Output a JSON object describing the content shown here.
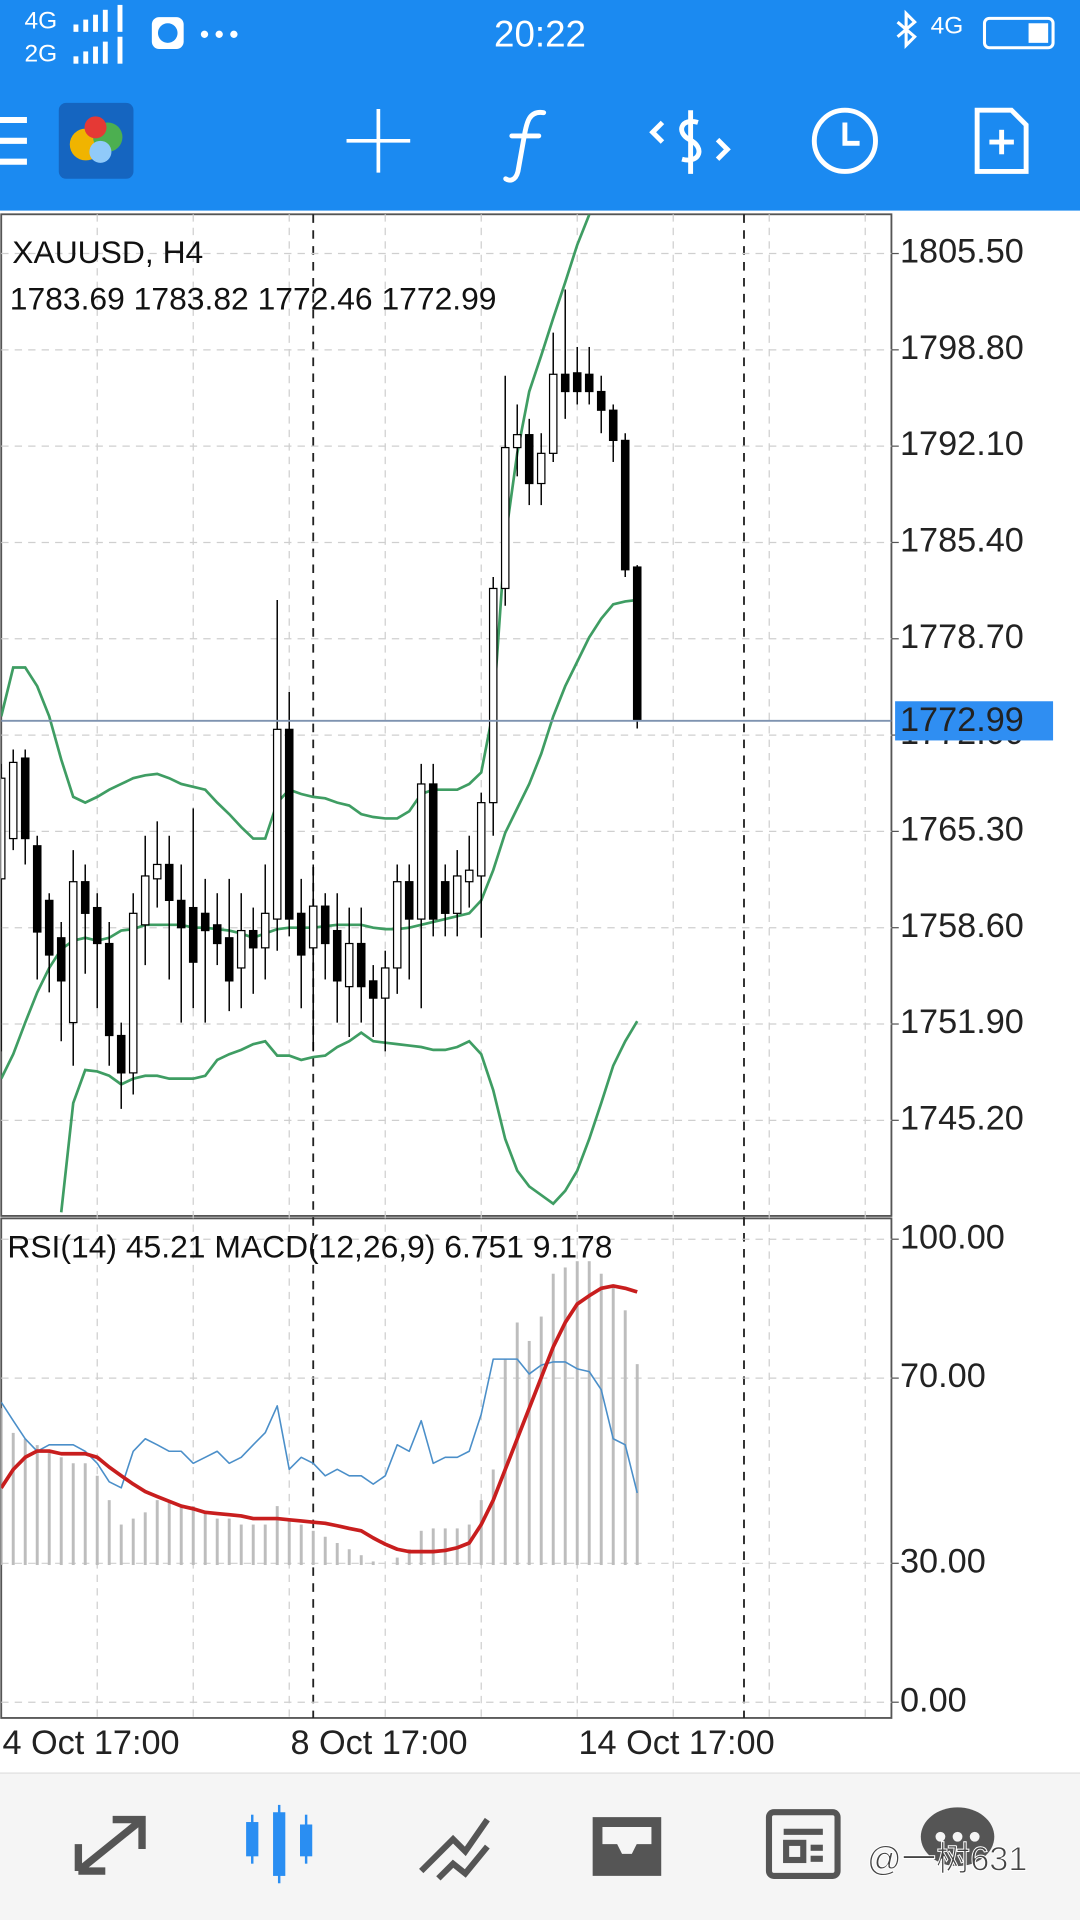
{
  "status_bar": {
    "network_top": "4G",
    "network_bottom": "2G",
    "time": "20:22",
    "network_right": "4G"
  },
  "chart_data": [
    {
      "type": "candlestick",
      "title": "XAUUSD, H4",
      "subtitle": "1783.69 1783.82 1772.46 1772.99",
      "categories": [
        "4 Oct 17:00",
        null,
        null,
        null,
        null,
        null,
        null,
        null,
        null,
        null,
        null,
        null,
        null,
        null,
        null,
        null,
        null,
        null,
        null,
        null,
        null,
        null,
        null,
        null,
        "8 Oct 17:00",
        null,
        null,
        null,
        null,
        null,
        null,
        null,
        null,
        null,
        null,
        null,
        null,
        null,
        null,
        null,
        null,
        null,
        null,
        null,
        null,
        null,
        null,
        null,
        "14 Oct 17:00",
        null,
        null,
        null,
        null,
        null
      ],
      "open": [
        1762,
        1764.8,
        1770.4,
        1764.3,
        1760.5,
        1757.9,
        1752,
        1761.8,
        1760,
        1757.5,
        1751.1,
        1748.5,
        1758.8,
        1762,
        1763,
        1760.5,
        1760,
        1759.6,
        1758.8,
        1757.9,
        1755.8,
        1758.4,
        1757.2,
        1759.2,
        1772.4,
        1759.6,
        1757.2,
        1760.1,
        1758.4,
        1754.5,
        1757.5,
        1754.9,
        1753.7,
        1755.8,
        1761.8,
        1759.2,
        1768.6,
        1761.8,
        1759.6,
        1761.8,
        1762.2,
        1767.3,
        1782.2,
        1792,
        1792.9,
        1789.5,
        1791.6,
        1797.1,
        1797.2,
        1797.1,
        1795.9,
        1794.6,
        1792.5,
        1783.69
      ],
      "high": [
        1770,
        1771,
        1771,
        1765,
        1761,
        1759,
        1764,
        1763,
        1761,
        1759,
        1752,
        1761,
        1765,
        1766,
        1765,
        1763,
        1766.9,
        1762,
        1761,
        1762,
        1761,
        1760,
        1763,
        1781.4,
        1775,
        1762,
        1763,
        1761,
        1761,
        1760,
        1760,
        1756,
        1757,
        1763,
        1763,
        1770,
        1770,
        1763,
        1764,
        1765,
        1768,
        1783,
        1797,
        1795,
        1794,
        1793,
        1800,
        1803,
        1799,
        1799,
        1797,
        1795,
        1793,
        1783.82
      ],
      "low": [
        1750,
        1764,
        1763,
        1755,
        1754.1,
        1750.7,
        1749,
        1755.4,
        1753,
        1749,
        1746,
        1747,
        1756,
        1760,
        1755,
        1752,
        1753,
        1752,
        1756,
        1752.8,
        1753,
        1754,
        1755,
        1757,
        1758,
        1753,
        1750,
        1755,
        1752,
        1751,
        1752,
        1751,
        1750,
        1754,
        1755,
        1753,
        1758,
        1758,
        1758,
        1760,
        1757.9,
        1765,
        1781,
        1790,
        1788,
        1788,
        1791,
        1794,
        1795,
        1795,
        1793,
        1791,
        1783,
        1772.46
      ],
      "close": [
        1769,
        1770.1,
        1764.8,
        1758.3,
        1756.7,
        1754.9,
        1761.8,
        1759.6,
        1757.5,
        1751.1,
        1748.5,
        1759.6,
        1762.2,
        1763,
        1760.5,
        1758.6,
        1756.2,
        1758.4,
        1757.5,
        1754.9,
        1758.4,
        1757.2,
        1759.6,
        1772.4,
        1759.2,
        1756.7,
        1760.1,
        1757.5,
        1754.9,
        1757.5,
        1754.5,
        1753.7,
        1755.8,
        1761.8,
        1759.2,
        1768.6,
        1759.2,
        1759.6,
        1762.2,
        1762.6,
        1767.3,
        1782.2,
        1792,
        1792.9,
        1789.5,
        1791.6,
        1797.1,
        1795.9,
        1795.9,
        1795.9,
        1794.6,
        1792.5,
        1783.5,
        1772.99
      ],
      "up_color": "#ffffff",
      "down_color": "#000000",
      "series": [
        {
          "color": "#3f9d63",
          "values": [
            1773.3,
            1776.7,
            1776.7,
            1775.4,
            1773.3,
            1770.3,
            1767.7,
            1767.3,
            1767.7,
            1768.2,
            1768.6,
            1769.0,
            1769.2,
            1769.3,
            1769.0,
            1768.6,
            1768.4,
            1768.2,
            1767.3,
            1766.5,
            1765.6,
            1764.8,
            1764.8,
            1767.3,
            1768.2,
            1767.9,
            1767.7,
            1767.6,
            1767.3,
            1767.1,
            1766.5,
            1766.3,
            1766.2,
            1766.2,
            1766.7,
            1767.9,
            1768.2,
            1768.2,
            1768.2,
            1768.6,
            1769.4,
            1773.7,
            1785.6,
            1791.6,
            1795.9,
            1798.4,
            1801.0,
            1803.5,
            1806.1,
            1808.2,
            null,
            null,
            null,
            null
          ]
        },
        {
          "color": "#3f9d63",
          "values": [
            1748.1,
            1749.8,
            1752.0,
            1754.1,
            1755.8,
            1757.1,
            1757.7,
            1757.9,
            1757.7,
            1757.9,
            1758.4,
            1758.5,
            1758.8,
            1758.8,
            1758.8,
            1758.8,
            1758.6,
            1758.6,
            1758.5,
            1758.4,
            1758.2,
            1757.9,
            1758.2,
            1758.5,
            1758.6,
            1758.6,
            1758.6,
            1758.7,
            1758.8,
            1758.8,
            1758.8,
            1758.6,
            1758.5,
            1758.5,
            1758.6,
            1758.8,
            1759.0,
            1759.2,
            1759.4,
            1759.6,
            1760.5,
            1762.6,
            1765.2,
            1766.9,
            1768.6,
            1770.7,
            1773.3,
            1775.4,
            1777.1,
            1778.8,
            1780.1,
            1781.1,
            1781.3,
            1781.4
          ]
        },
        {
          "color": "#3f9d63",
          "values": [
            null,
            null,
            null,
            null,
            null,
            1738.8,
            1746.4,
            1748.7,
            1748.6,
            1748.3,
            1747.7,
            1748.1,
            1748.3,
            1748.3,
            1748.1,
            1748.1,
            1748.1,
            1748.3,
            1749.4,
            1749.8,
            1750.1,
            1750.5,
            1750.7,
            1749.7,
            1749.7,
            1749.4,
            1749.6,
            1749.7,
            1750.3,
            1750.7,
            1751.3,
            1750.7,
            1750.6,
            1750.5,
            1750.4,
            1750.3,
            1750.1,
            1750.1,
            1750.3,
            1750.7,
            1749.8,
            1747.3,
            1743.9,
            1741.7,
            1740.6,
            1740.0,
            1739.4,
            1740.3,
            1741.7,
            1743.9,
            1746.4,
            1749.0,
            1750.7,
            1752.1
          ]
        }
      ],
      "ylim": [
        1738.55,
        1808.23
      ],
      "yticks": [
        {
          "value": 1805.5,
          "label": "1805.50"
        },
        {
          "value": 1798.8,
          "label": "1798.80"
        },
        {
          "value": 1792.1,
          "label": "1792.10"
        },
        {
          "value": 1785.4,
          "label": "1785.40"
        },
        {
          "value": 1778.7,
          "label": "1778.70"
        },
        {
          "value": 1772,
          "label": "1772.00"
        },
        {
          "value": 1765.3,
          "label": "1765.30"
        },
        {
          "value": 1758.6,
          "label": "1758.60"
        },
        {
          "value": 1751.9,
          "label": "1751.90"
        },
        {
          "value": 1745.2,
          "label": "1745.20"
        }
      ],
      "last_price": 1772.99,
      "last_price_color": "#2f8ef2",
      "grid": true
    },
    {
      "type": "indicator",
      "title": "RSI(14) 45.21 MACD(12,26,9) 6.751 9.178",
      "ylim": [
        -3.4,
        104.5
      ],
      "yticks": [
        {
          "value": 0,
          "label": "0.00"
        },
        {
          "value": 30,
          "label": "30.00"
        },
        {
          "value": 70,
          "label": "70.00"
        },
        {
          "value": 100,
          "label": "100.00"
        }
      ],
      "y2lim": [
        -5.14,
        11.65
      ],
      "grid": true,
      "series": [
        {
          "type": "bar",
          "axis": "y2",
          "color": "#bdbdbd",
          "values": [
            5.27,
            4.44,
            4.24,
            4.03,
            3.83,
            3.62,
            3.42,
            3.42,
            3.0,
            2.18,
            1.36,
            1.56,
            1.77,
            2.18,
            2.18,
            1.98,
            1.98,
            1.77,
            1.56,
            1.56,
            1.36,
            1.36,
            1.36,
            1.98,
            1.56,
            1.36,
            1.15,
            0.95,
            0.74,
            0.53,
            0.33,
            0.12,
            0,
            0.25,
            0.53,
            1.15,
            1.23,
            1.23,
            1.23,
            1.36,
            2.18,
            3.21,
            6.91,
            8.15,
            7.53,
            8.35,
            9.79,
            10.0,
            10.21,
            10.21,
            9.79,
            9.38,
            8.56,
            6.751
          ]
        },
        {
          "type": "line",
          "color": "#4b8fc9",
          "width": 1.3,
          "values": [
            64.8,
            60.8,
            56.9,
            54.2,
            55.6,
            55.6,
            55.6,
            54.2,
            51.6,
            47.6,
            46.3,
            54.2,
            56.9,
            55.6,
            54.2,
            54.2,
            51.6,
            52.9,
            54.2,
            51.6,
            52.9,
            55.6,
            58.2,
            64.0,
            50.3,
            52.9,
            51.6,
            48.9,
            50.3,
            48.9,
            48.9,
            47.1,
            48.9,
            55.6,
            54.2,
            60.8,
            51.6,
            52.9,
            52.9,
            54.2,
            62.2,
            74.1,
            74.1,
            74.1,
            70.9,
            72.8,
            73.5,
            73.5,
            72.0,
            71.4,
            67.5,
            56.9,
            55.6,
            45.21
          ]
        },
        {
          "type": "line",
          "axis": "y2",
          "color": "#c81e1e",
          "width": 3,
          "values": [
            2.59,
            3.21,
            3.62,
            3.83,
            3.83,
            3.74,
            3.74,
            3.74,
            3.62,
            3.29,
            3.0,
            2.72,
            2.47,
            2.3,
            2.14,
            1.98,
            1.89,
            1.77,
            1.73,
            1.69,
            1.65,
            1.56,
            1.56,
            1.56,
            1.52,
            1.48,
            1.44,
            1.4,
            1.32,
            1.23,
            1.15,
            0.91,
            0.7,
            0.53,
            0.45,
            0.45,
            0.45,
            0.49,
            0.58,
            0.74,
            1.36,
            2.18,
            3.21,
            4.24,
            5.27,
            6.3,
            7.33,
            8.15,
            8.77,
            9.05,
            9.3,
            9.38,
            9.3,
            9.178
          ]
        }
      ]
    }
  ],
  "watermark": "@一树631"
}
